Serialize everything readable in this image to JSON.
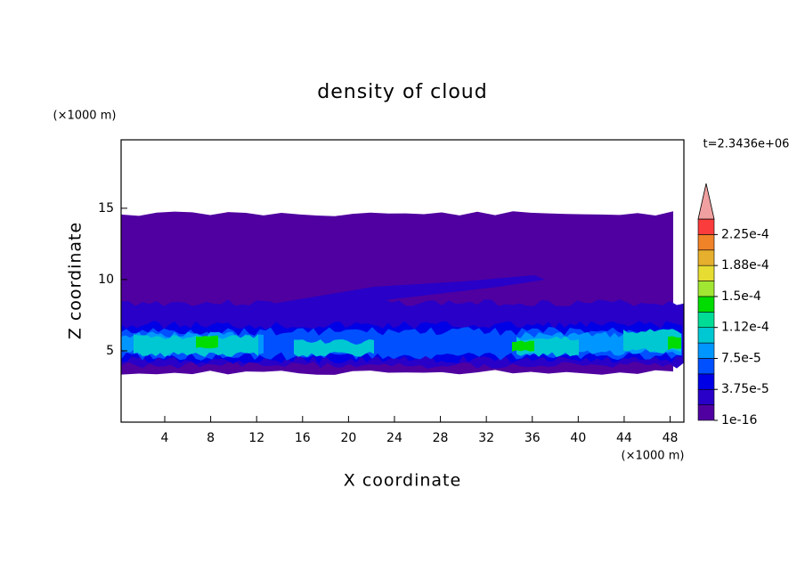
{
  "chart_data": {
    "type": "contour",
    "title": "density of cloud",
    "x_label": "X coordinate",
    "y_label": "Z coordinate",
    "x_unit": "(×1000 m)",
    "y_unit": "(×1000 m)",
    "time_label": "t=2.3436e+06",
    "xlim": [
      0.2,
      49.2
    ],
    "ylim": [
      0,
      19.8
    ],
    "xticks": [
      4,
      8,
      12,
      16,
      20,
      24,
      28,
      32,
      36,
      40,
      44,
      48
    ],
    "yticks": [
      5,
      10,
      15
    ],
    "colors": [
      "#5000a0",
      "#2800c8",
      "#0000e6",
      "#0050ff",
      "#0096ff",
      "#00c8d2",
      "#00dc96",
      "#00dc00",
      "#a0e632",
      "#e6dc32",
      "#e6af2d",
      "#f08228",
      "#fa3c3c"
    ],
    "extend_color": "#f0a0a0",
    "colorbar_ticks": [
      {
        "value": 1e-16,
        "label": "1e-16"
      },
      {
        "value": 3.75e-05,
        "label": "3.75e-5"
      },
      {
        "value": 7.5e-05,
        "label": "7.5e-5"
      },
      {
        "value": 0.000112,
        "label": "1.12e-4"
      },
      {
        "value": 0.00015,
        "label": "1.5e-4"
      },
      {
        "value": 0.000188,
        "label": "1.88e-4"
      },
      {
        "value": 0.000225,
        "label": "2.25e-4"
      }
    ]
  }
}
